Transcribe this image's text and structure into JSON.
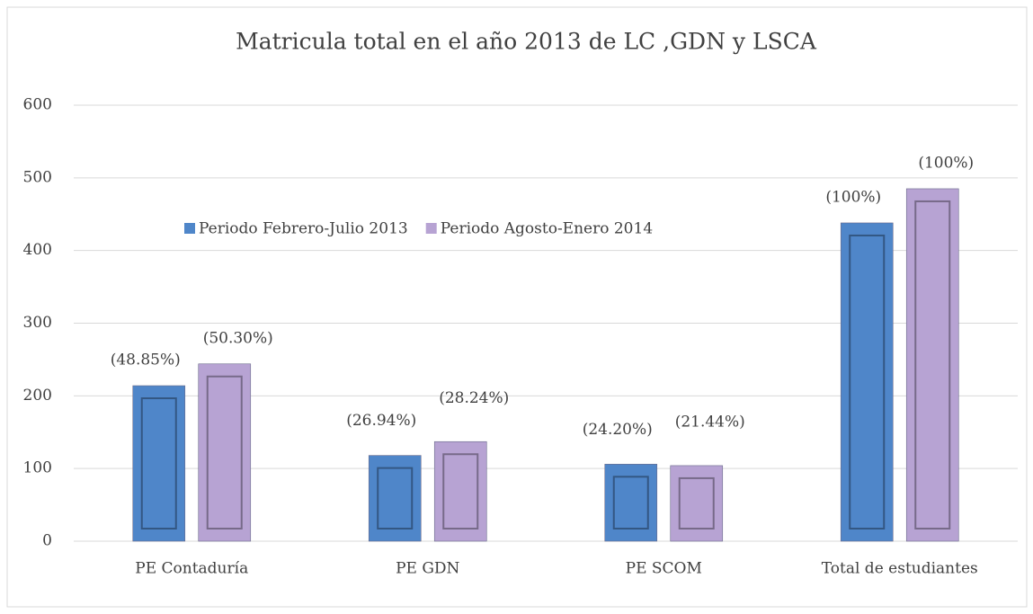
{
  "chart_data": {
    "type": "bar",
    "title": "Matricula total en el año 2013 de LC ,GDN y LSCA",
    "categories": [
      "PE Contaduría",
      "PE GDN",
      "PE SCOM",
      "Total de estudiantes"
    ],
    "series": [
      {
        "name": "Periodo Febrero-Julio 2013",
        "color": "#4f86c9",
        "values": [
          214,
          118,
          106,
          438
        ],
        "value_labels": [
          "(48.85%)",
          "(26.94%)",
          "(24.20%)",
          "(100%)"
        ]
      },
      {
        "name": "Periodo Agosto-Enero 2014",
        "color": "#b7a3d3",
        "values": [
          244,
          137,
          104,
          485
        ],
        "value_labels": [
          "(50.30%)",
          "(28.24%)",
          "(21.44%)",
          "(100%)"
        ]
      }
    ],
    "ylim": [
      0,
      600
    ],
    "yticks": [
      0,
      100,
      200,
      300,
      400,
      500,
      600
    ],
    "grid": true,
    "legend": "top"
  }
}
